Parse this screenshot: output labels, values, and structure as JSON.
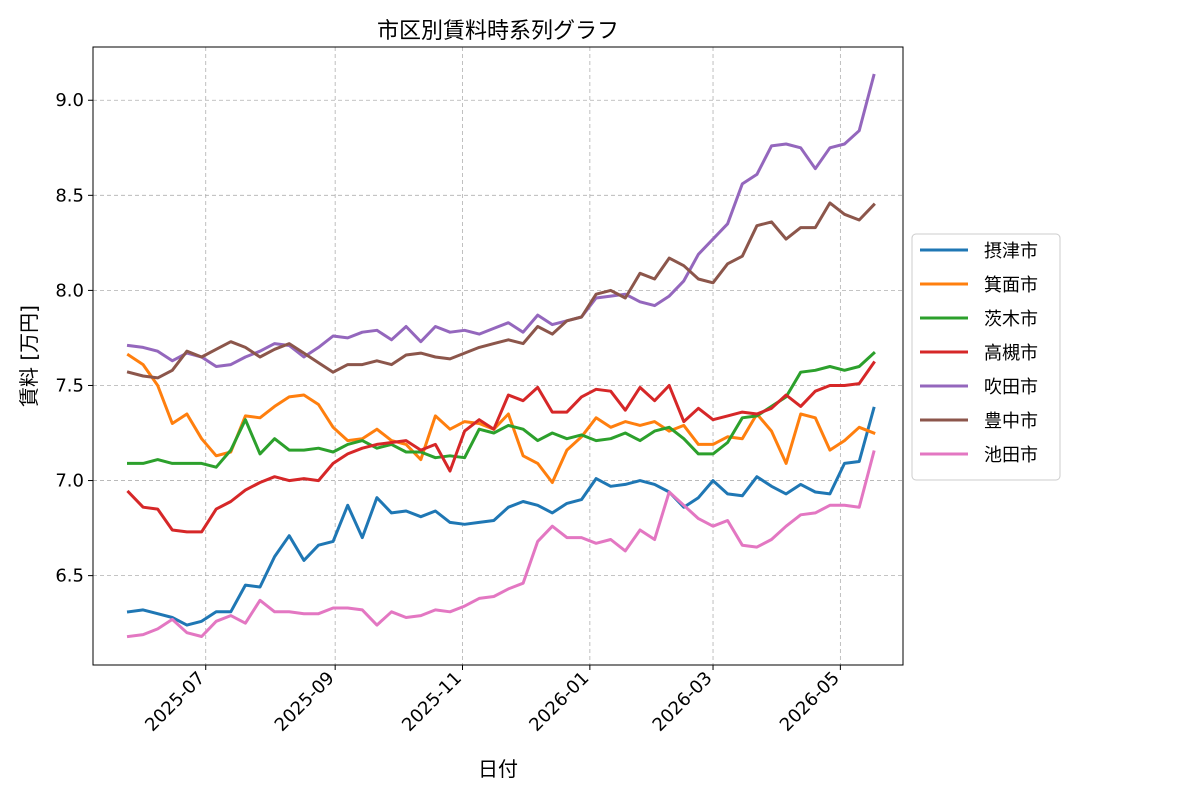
{
  "chart_data": {
    "type": "line",
    "title": "市区別賃料時系列グラフ",
    "xlabel": "日付",
    "ylabel": "賃料 [万円]",
    "xlim": [
      "2025-05-08",
      "2026-05-31"
    ],
    "ylim": [
      6.03,
      9.28
    ],
    "yticks": [
      6.5,
      7.0,
      7.5,
      8.0,
      8.5,
      9.0
    ],
    "xticks": [
      "2025-07",
      "2025-09",
      "2025-11",
      "2026-01",
      "2026-03",
      "2026-05"
    ],
    "grid": true,
    "legend_position": "right-outside",
    "x": [
      "2025-05-25",
      "2025-06-01",
      "2025-06-08",
      "2025-06-15",
      "2025-06-22",
      "2025-06-29",
      "2025-07-06",
      "2025-07-13",
      "2025-07-20",
      "2025-07-27",
      "2025-08-03",
      "2025-08-10",
      "2025-08-17",
      "2025-08-24",
      "2025-08-31",
      "2025-09-07",
      "2025-09-14",
      "2025-09-21",
      "2025-09-28",
      "2025-10-05",
      "2025-10-12",
      "2025-10-19",
      "2025-10-26",
      "2025-11-02",
      "2025-11-09",
      "2025-11-16",
      "2025-11-23",
      "2025-11-30",
      "2025-12-07",
      "2025-12-14",
      "2025-12-21",
      "2025-12-28",
      "2026-01-04",
      "2026-01-11",
      "2026-01-18",
      "2026-01-25",
      "2026-02-01",
      "2026-02-08",
      "2026-02-15",
      "2026-02-22",
      "2026-03-01",
      "2026-03-08",
      "2026-03-15",
      "2026-03-22",
      "2026-03-29",
      "2026-04-05",
      "2026-04-12",
      "2026-04-19",
      "2026-04-26",
      "2026-05-03",
      "2026-05-10",
      "2026-05-17"
    ],
    "series": [
      {
        "name": "摂津市",
        "color": "#1f77b4",
        "values": [
          6.31,
          6.32,
          6.3,
          6.28,
          6.24,
          6.26,
          6.31,
          6.31,
          6.45,
          6.44,
          6.6,
          6.71,
          6.58,
          6.66,
          6.68,
          6.87,
          6.7,
          6.91,
          6.83,
          6.84,
          6.81,
          6.84,
          6.78,
          6.77,
          6.78,
          6.79,
          6.86,
          6.89,
          6.87,
          6.83,
          6.88,
          6.9,
          7.01,
          6.97,
          6.98,
          7.0,
          6.98,
          6.94,
          6.86,
          6.91,
          7.0,
          6.93,
          6.92,
          7.02,
          6.97,
          6.93,
          6.98,
          6.94,
          6.93,
          7.09,
          7.1,
          7.38
        ]
      },
      {
        "name": "箕面市",
        "color": "#ff7f0e",
        "values": [
          7.66,
          7.61,
          7.5,
          7.3,
          7.35,
          7.22,
          7.13,
          7.15,
          7.34,
          7.33,
          7.39,
          7.44,
          7.45,
          7.4,
          7.28,
          7.21,
          7.22,
          7.27,
          7.21,
          7.19,
          7.11,
          7.34,
          7.27,
          7.31,
          7.3,
          7.27,
          7.35,
          7.13,
          7.09,
          6.99,
          7.16,
          7.23,
          7.33,
          7.28,
          7.31,
          7.29,
          7.31,
          7.26,
          7.29,
          7.19,
          7.19,
          7.23,
          7.22,
          7.35,
          7.26,
          7.09,
          7.35,
          7.33,
          7.16,
          7.21,
          7.28,
          7.25
        ]
      },
      {
        "name": "茨木市",
        "color": "#2ca02c",
        "values": [
          7.09,
          7.09,
          7.11,
          7.09,
          7.09,
          7.09,
          7.07,
          7.16,
          7.32,
          7.14,
          7.22,
          7.16,
          7.16,
          7.17,
          7.15,
          7.19,
          7.21,
          7.17,
          7.19,
          7.15,
          7.15,
          7.12,
          7.13,
          7.12,
          7.27,
          7.25,
          7.29,
          7.27,
          7.21,
          7.25,
          7.22,
          7.24,
          7.21,
          7.22,
          7.25,
          7.21,
          7.26,
          7.28,
          7.22,
          7.14,
          7.14,
          7.2,
          7.33,
          7.34,
          7.39,
          7.44,
          7.57,
          7.58,
          7.6,
          7.58,
          7.6,
          7.67
        ]
      },
      {
        "name": "高槻市",
        "color": "#d62728",
        "values": [
          6.94,
          6.86,
          6.85,
          6.74,
          6.73,
          6.73,
          6.85,
          6.89,
          6.95,
          6.99,
          7.02,
          7.0,
          7.01,
          7.0,
          7.09,
          7.14,
          7.17,
          7.19,
          7.2,
          7.21,
          7.16,
          7.19,
          7.05,
          7.26,
          7.32,
          7.27,
          7.45,
          7.42,
          7.49,
          7.36,
          7.36,
          7.44,
          7.48,
          7.47,
          7.37,
          7.49,
          7.42,
          7.5,
          7.31,
          7.38,
          7.32,
          7.34,
          7.36,
          7.35,
          7.38,
          7.45,
          7.39,
          7.47,
          7.5,
          7.5,
          7.51,
          7.62
        ]
      },
      {
        "name": "吹田市",
        "color": "#9467bd",
        "values": [
          7.71,
          7.7,
          7.68,
          7.63,
          7.67,
          7.65,
          7.6,
          7.61,
          7.65,
          7.68,
          7.72,
          7.71,
          7.65,
          7.7,
          7.76,
          7.75,
          7.78,
          7.79,
          7.74,
          7.81,
          7.73,
          7.81,
          7.78,
          7.79,
          7.77,
          7.8,
          7.83,
          7.78,
          7.87,
          7.82,
          7.84,
          7.86,
          7.96,
          7.97,
          7.98,
          7.94,
          7.92,
          7.97,
          8.05,
          8.19,
          8.27,
          8.35,
          8.56,
          8.61,
          8.76,
          8.77,
          8.75,
          8.64,
          8.75,
          8.77,
          8.84,
          9.13
        ]
      },
      {
        "name": "豊中市",
        "color": "#8c564b",
        "values": [
          7.57,
          7.55,
          7.54,
          7.58,
          7.68,
          7.65,
          7.69,
          7.73,
          7.7,
          7.65,
          7.69,
          7.72,
          7.67,
          7.62,
          7.57,
          7.61,
          7.61,
          7.63,
          7.61,
          7.66,
          7.67,
          7.65,
          7.64,
          7.67,
          7.7,
          7.72,
          7.74,
          7.72,
          7.81,
          7.77,
          7.84,
          7.86,
          7.98,
          8.0,
          7.96,
          8.09,
          8.06,
          8.17,
          8.13,
          8.06,
          8.04,
          8.14,
          8.18,
          8.34,
          8.36,
          8.27,
          8.33,
          8.33,
          8.46,
          8.4,
          8.37,
          8.45
        ]
      },
      {
        "name": "池田市",
        "color": "#e377c2",
        "values": [
          6.18,
          6.19,
          6.22,
          6.27,
          6.2,
          6.18,
          6.26,
          6.29,
          6.25,
          6.37,
          6.31,
          6.31,
          6.3,
          6.3,
          6.33,
          6.33,
          6.32,
          6.24,
          6.31,
          6.28,
          6.29,
          6.32,
          6.31,
          6.34,
          6.38,
          6.39,
          6.43,
          6.46,
          6.68,
          6.76,
          6.7,
          6.7,
          6.67,
          6.69,
          6.63,
          6.74,
          6.69,
          6.94,
          6.87,
          6.8,
          6.76,
          6.79,
          6.66,
          6.65,
          6.69,
          6.76,
          6.82,
          6.83,
          6.87,
          6.87,
          6.86,
          7.15
        ]
      }
    ]
  }
}
